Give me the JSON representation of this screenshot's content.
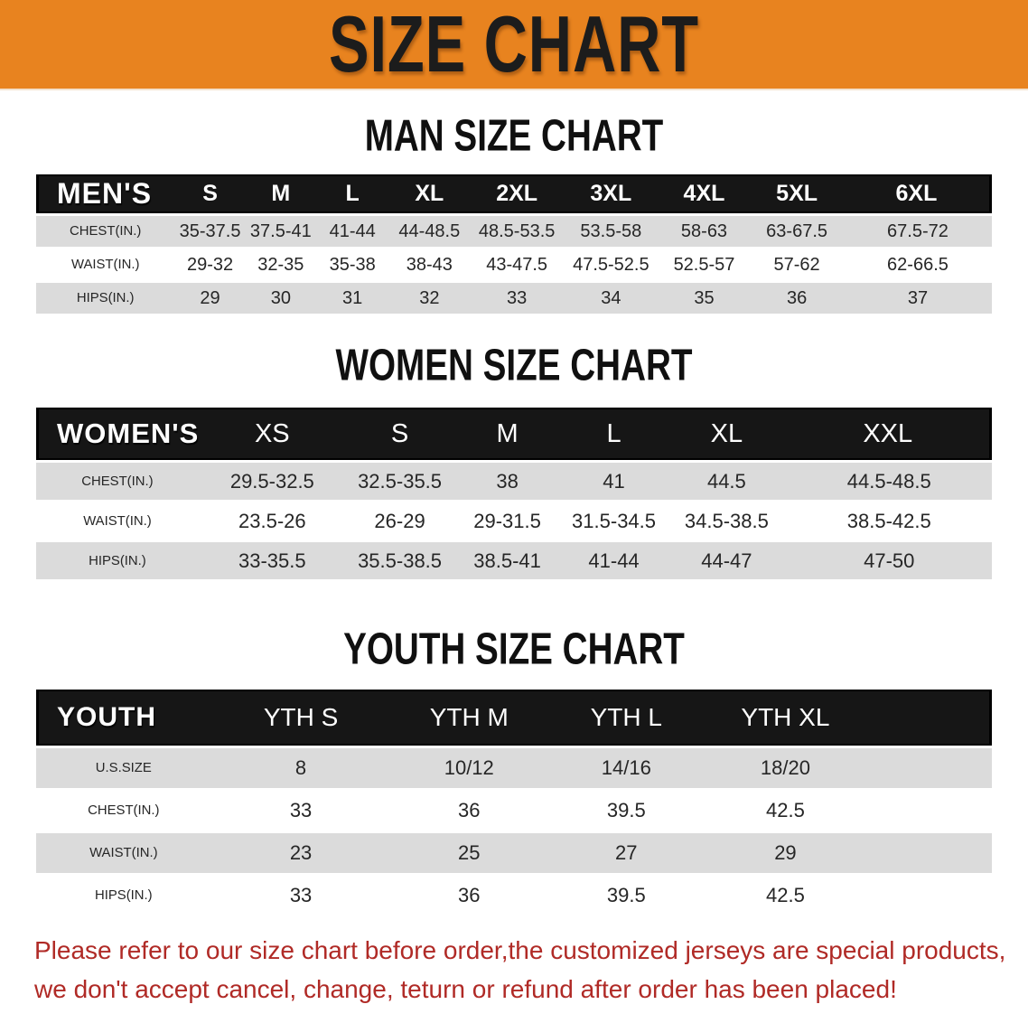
{
  "banner": {
    "title": "SIZE CHART"
  },
  "sections": [
    {
      "heading": "MAN SIZE CHART",
      "table": {
        "corner": "MEN'S",
        "columns": [
          "S",
          "M",
          "L",
          "XL",
          "2XL",
          "3XL",
          "4XL",
          "5XL",
          "6XL"
        ],
        "rows": [
          {
            "label": "CHEST(IN.)",
            "values": [
              "35-37.5",
              "37.5-41",
              "41-44",
              "44-48.5",
              "48.5-53.5",
              "53.5-58",
              "58-63",
              "63-67.5",
              "67.5-72"
            ]
          },
          {
            "label": "WAIST(IN.)",
            "values": [
              "29-32",
              "32-35",
              "35-38",
              "38-43",
              "43-47.5",
              "47.5-52.5",
              "52.5-57",
              "57-62",
              "62-66.5"
            ]
          },
          {
            "label": "HIPS(IN.)",
            "values": [
              "29",
              "30",
              "31",
              "32",
              "33",
              "34",
              "35",
              "36",
              "37"
            ]
          }
        ]
      }
    },
    {
      "heading": "WOMEN SIZE CHART",
      "table": {
        "corner": "WOMEN'S",
        "columns": [
          "XS",
          "S",
          "M",
          "L",
          "XL",
          "XXL"
        ],
        "rows": [
          {
            "label": "CHEST(IN.)",
            "values": [
              "29.5-32.5",
              "32.5-35.5",
              "38",
              "41",
              "44.5",
              "44.5-48.5"
            ]
          },
          {
            "label": "WAIST(IN.)",
            "values": [
              "23.5-26",
              "26-29",
              "29-31.5",
              "31.5-34.5",
              "34.5-38.5",
              "38.5-42.5"
            ]
          },
          {
            "label": "HIPS(IN.)",
            "values": [
              "33-35.5",
              "35.5-38.5",
              "38.5-41",
              "41-44",
              "44-47",
              "47-50"
            ]
          }
        ]
      }
    },
    {
      "heading": "YOUTH SIZE CHART",
      "table": {
        "corner": "YOUTH",
        "columns": [
          "YTH S",
          "YTH M",
          "YTH L",
          "YTH XL"
        ],
        "rows": [
          {
            "label": "U.S.SIZE",
            "values": [
              "8",
              "10/12",
              "14/16",
              "18/20"
            ]
          },
          {
            "label": "CHEST(IN.)",
            "values": [
              "33",
              "36",
              "39.5",
              "42.5"
            ]
          },
          {
            "label": "WAIST(IN.)",
            "values": [
              "23",
              "25",
              "27",
              "29"
            ]
          },
          {
            "label": "HIPS(IN.)",
            "values": [
              "33",
              "36",
              "39.5",
              "42.5"
            ]
          }
        ]
      }
    }
  ],
  "disclaimer": {
    "line1": "Please refer to our size chart before order,the customized jerseys are special products,",
    "line2": "we don't accept cancel, change, teturn or refund after order has been placed!"
  },
  "colors": {
    "banner_bg": "#E8831F",
    "header_bar_bg": "#161616",
    "row_gray": "#DBDBDB",
    "row_white": "#FFFFFF",
    "banner_text": "#1c1c1c",
    "disclaimer_red": "#B02A26"
  }
}
